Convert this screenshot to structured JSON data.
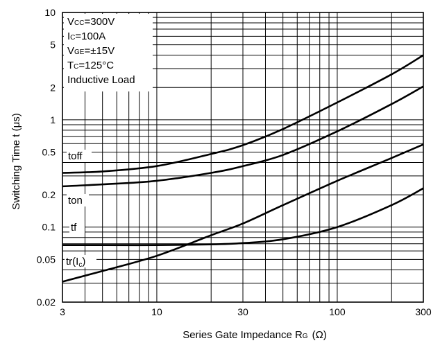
{
  "chart_data": {
    "type": "line",
    "xscale": "log",
    "yscale": "log",
    "xlim": [
      3,
      300
    ],
    "ylim": [
      0.02,
      10
    ],
    "xticks": [
      3,
      10,
      30,
      100,
      300
    ],
    "xtick_labels": [
      "3",
      "10",
      "30",
      "100",
      "300"
    ],
    "yticks": [
      0.02,
      0.05,
      0.1,
      0.2,
      0.5,
      1,
      2,
      5,
      10
    ],
    "ytick_labels": [
      "0.02",
      "0.05",
      "0.1",
      "0.2",
      "0.5",
      "1",
      "2",
      "5",
      "10"
    ],
    "xlabel": {
      "main": "Series Gate Impedance R",
      "sub": "G",
      "unit": "(Ω)"
    },
    "ylabel": "Switching Time t  (μs)",
    "grid": true,
    "conditions": [
      {
        "main": "V",
        "sub": "CC",
        "rest": "=300V"
      },
      {
        "main": "I",
        "sub": "C",
        "rest": "=100A"
      },
      {
        "main": "V",
        "sub": "GE",
        "rest": "=±15V"
      },
      {
        "main": "T",
        "sub": "C",
        "rest": "=125°C"
      },
      {
        "main": "Inductive Load",
        "sub": "",
        "rest": ""
      }
    ],
    "series": [
      {
        "name": "toff",
        "label_main": "toff",
        "label_sub": "",
        "label_close": "",
        "x": [
          3,
          5,
          10,
          20,
          30,
          50,
          100,
          200,
          300
        ],
        "y": [
          0.32,
          0.33,
          0.37,
          0.48,
          0.58,
          0.82,
          1.45,
          2.65,
          4.0
        ]
      },
      {
        "name": "ton",
        "label_main": "ton",
        "label_sub": "",
        "label_close": "",
        "x": [
          3,
          5,
          10,
          20,
          30,
          50,
          100,
          200,
          300
        ],
        "y": [
          0.24,
          0.25,
          0.27,
          0.32,
          0.37,
          0.47,
          0.78,
          1.4,
          2.05
        ]
      },
      {
        "name": "tf",
        "label_main": "tf",
        "label_sub": "",
        "label_close": "",
        "x": [
          3,
          5,
          10,
          20,
          30,
          50,
          100,
          200,
          300
        ],
        "y": [
          0.068,
          0.068,
          0.068,
          0.069,
          0.071,
          0.077,
          0.1,
          0.16,
          0.23
        ]
      },
      {
        "name": "tr(Ic)",
        "label_main": "tr(I",
        "label_sub": "c",
        "label_close": ")",
        "x": [
          3,
          5,
          10,
          20,
          30,
          50,
          100,
          200,
          300
        ],
        "y": [
          0.031,
          0.039,
          0.054,
          0.084,
          0.108,
          0.16,
          0.27,
          0.44,
          0.59
        ]
      }
    ]
  }
}
